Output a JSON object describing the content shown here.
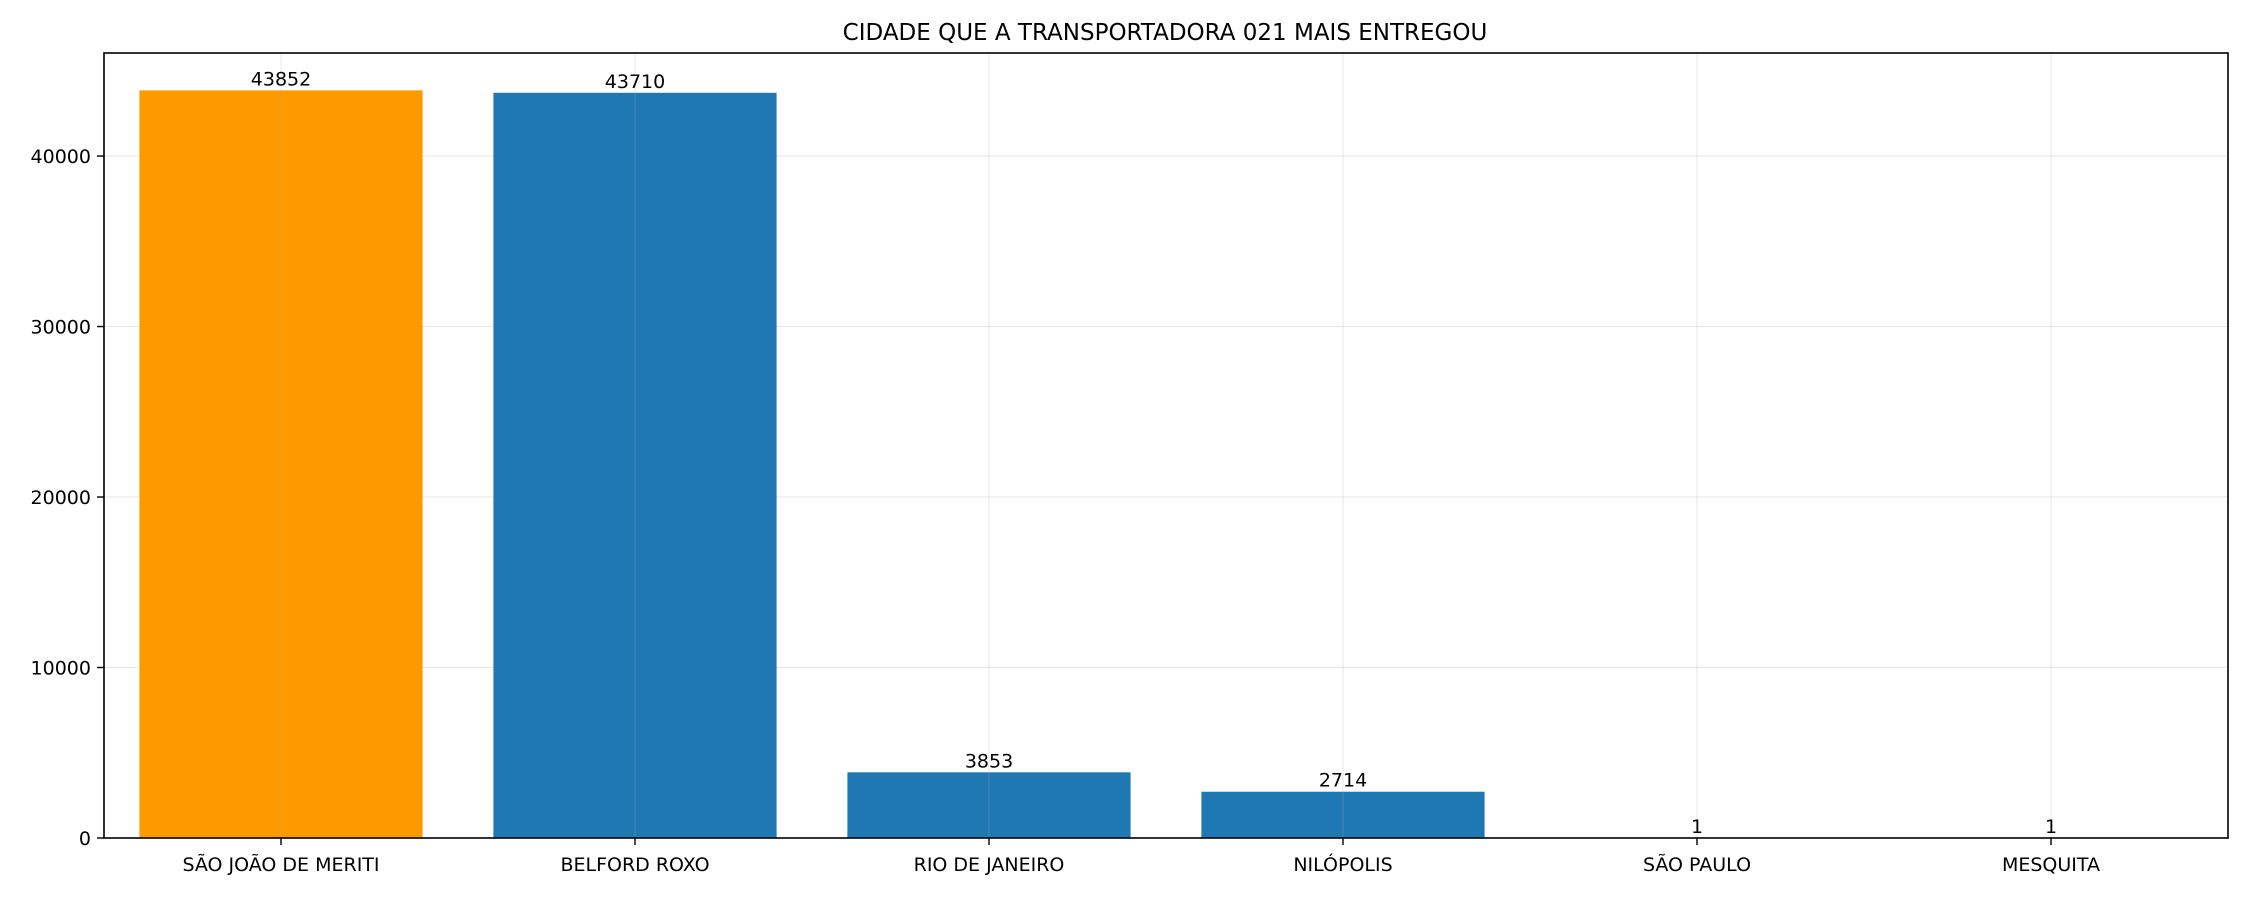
{
  "chart_data": {
    "type": "bar",
    "title": "CIDADE QUE A TRANSPORTADORA 021 MAIS ENTREGOU",
    "xlabel": "",
    "ylabel": "",
    "categories": [
      "SÃO JOÃO DE MERITI",
      "BELFORD ROXO",
      "RIO DE JANEIRO",
      "NILÓPOLIS",
      "SÃO PAULO",
      "MESQUITA"
    ],
    "values": [
      43852,
      43710,
      3853,
      2714,
      1,
      1
    ],
    "bar_colors": [
      "#ff9900",
      "#1f77b4",
      "#1f77b4",
      "#1f77b4",
      "#1f77b4",
      "#1f77b4"
    ],
    "highlight_color": "#ff9900",
    "default_color": "#1f77b4",
    "ylim": [
      0,
      46045
    ],
    "yticks": [
      0,
      10000,
      20000,
      30000,
      40000
    ],
    "grid": true,
    "legend": "none"
  }
}
